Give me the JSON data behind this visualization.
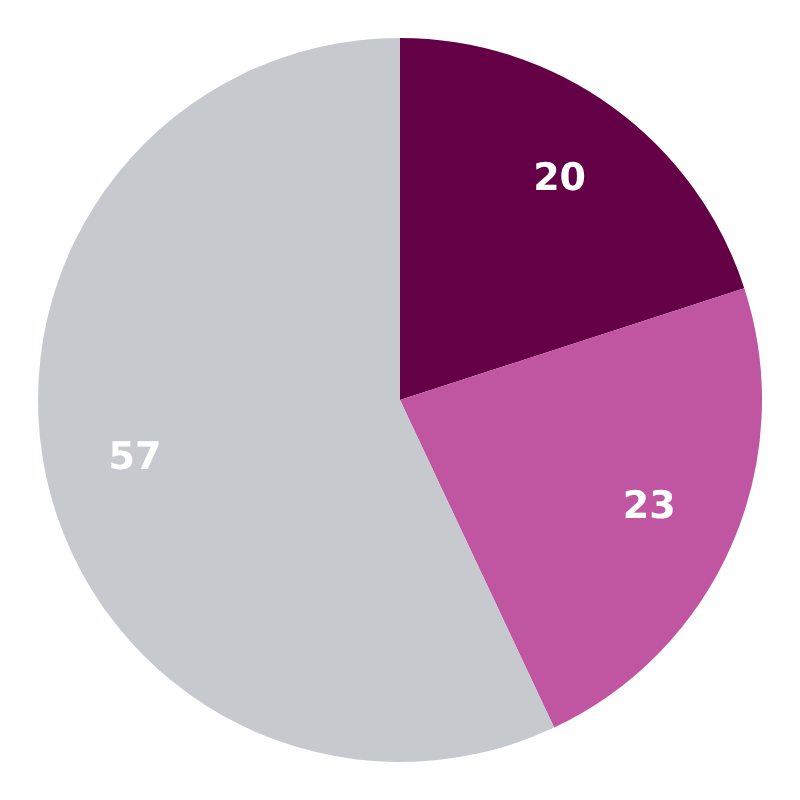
{
  "chart_data": {
    "type": "pie",
    "categories": [
      null,
      null,
      null
    ],
    "values": [
      20,
      23,
      57
    ],
    "colors": [
      "#630046",
      "#c056a2",
      "#c6c9cd"
    ],
    "data_labels": true,
    "legend": false
  }
}
